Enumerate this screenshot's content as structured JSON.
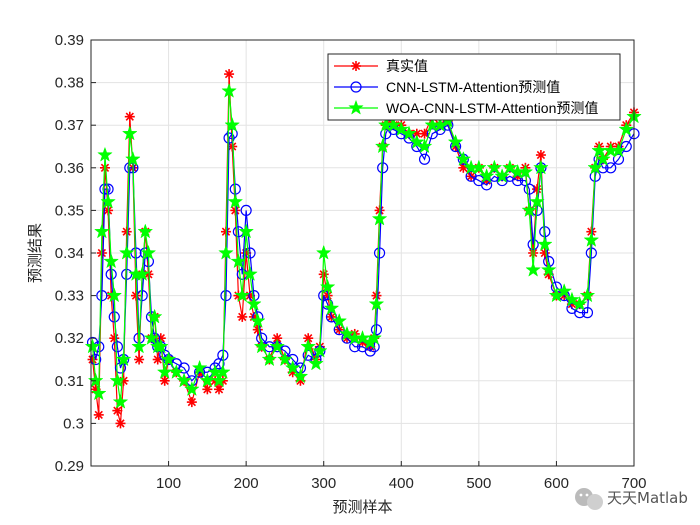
{
  "chart_data": {
    "type": "line",
    "title": "",
    "xlabel": "预测样本",
    "ylabel": "预测结果",
    "xlim": [
      0,
      700
    ],
    "ylim": [
      0.29,
      0.39
    ],
    "xticks": [
      100,
      200,
      300,
      400,
      500,
      600,
      700
    ],
    "yticks": [
      0.29,
      0.3,
      0.31,
      0.32,
      0.33,
      0.34,
      0.35,
      0.36,
      0.37,
      0.38,
      0.39
    ],
    "grid": true,
    "legend_position": "top-right",
    "series": [
      {
        "name": "真实值",
        "color": "#ff0000",
        "marker": "asterisk",
        "x": [
          2,
          6,
          10,
          14,
          18,
          22,
          26,
          30,
          34,
          38,
          42,
          46,
          50,
          54,
          58,
          62,
          66,
          70,
          74,
          78,
          82,
          86,
          90,
          95,
          100,
          110,
          120,
          130,
          140,
          150,
          160,
          165,
          170,
          174,
          178,
          182,
          186,
          190,
          195,
          200,
          205,
          210,
          215,
          220,
          230,
          240,
          250,
          260,
          270,
          280,
          290,
          295,
          300,
          305,
          310,
          320,
          330,
          340,
          350,
          360,
          365,
          368,
          372,
          376,
          380,
          385,
          390,
          400,
          410,
          420,
          430,
          440,
          450,
          460,
          470,
          480,
          490,
          500,
          510,
          520,
          530,
          540,
          550,
          560,
          565,
          570,
          575,
          580,
          585,
          590,
          600,
          610,
          620,
          630,
          640,
          645,
          650,
          655,
          660,
          670,
          680,
          690,
          700
        ],
        "y": [
          0.315,
          0.308,
          0.302,
          0.34,
          0.36,
          0.35,
          0.33,
          0.32,
          0.303,
          0.3,
          0.31,
          0.345,
          0.372,
          0.36,
          0.33,
          0.315,
          0.335,
          0.345,
          0.335,
          0.32,
          0.325,
          0.315,
          0.32,
          0.31,
          0.315,
          0.312,
          0.31,
          0.305,
          0.312,
          0.308,
          0.31,
          0.308,
          0.31,
          0.345,
          0.382,
          0.365,
          0.35,
          0.33,
          0.325,
          0.34,
          0.33,
          0.325,
          0.322,
          0.318,
          0.315,
          0.32,
          0.315,
          0.312,
          0.31,
          0.32,
          0.315,
          0.318,
          0.335,
          0.33,
          0.325,
          0.322,
          0.32,
          0.321,
          0.319,
          0.318,
          0.32,
          0.33,
          0.35,
          0.365,
          0.37,
          0.372,
          0.37,
          0.37,
          0.368,
          0.368,
          0.368,
          0.372,
          0.37,
          0.371,
          0.365,
          0.36,
          0.358,
          0.36,
          0.357,
          0.36,
          0.358,
          0.36,
          0.358,
          0.36,
          0.35,
          0.34,
          0.355,
          0.363,
          0.34,
          0.335,
          0.33,
          0.33,
          0.328,
          0.328,
          0.33,
          0.345,
          0.36,
          0.365,
          0.362,
          0.365,
          0.365,
          0.37,
          0.373
        ]
      },
      {
        "name": "CNN-LSTM-Attention预测值",
        "color": "#0000ff",
        "marker": "circle",
        "x": [
          2,
          6,
          10,
          14,
          18,
          22,
          26,
          30,
          34,
          38,
          42,
          46,
          50,
          54,
          58,
          62,
          66,
          70,
          74,
          78,
          82,
          86,
          90,
          95,
          100,
          110,
          120,
          130,
          140,
          150,
          160,
          165,
          170,
          174,
          178,
          182,
          186,
          190,
          195,
          200,
          205,
          210,
          215,
          220,
          230,
          240,
          250,
          260,
          270,
          280,
          290,
          295,
          300,
          305,
          310,
          320,
          330,
          340,
          350,
          360,
          365,
          368,
          372,
          376,
          380,
          385,
          390,
          400,
          410,
          420,
          430,
          440,
          450,
          460,
          470,
          480,
          490,
          500,
          510,
          520,
          530,
          540,
          550,
          560,
          565,
          570,
          575,
          580,
          585,
          590,
          600,
          610,
          620,
          630,
          640,
          645,
          650,
          655,
          660,
          670,
          680,
          690,
          700
        ],
        "y": [
          0.319,
          0.315,
          0.318,
          0.33,
          0.355,
          0.355,
          0.335,
          0.325,
          0.318,
          0.313,
          0.315,
          0.335,
          0.36,
          0.36,
          0.34,
          0.32,
          0.33,
          0.34,
          0.338,
          0.325,
          0.32,
          0.318,
          0.318,
          0.316,
          0.315,
          0.314,
          0.313,
          0.31,
          0.312,
          0.312,
          0.313,
          0.314,
          0.316,
          0.33,
          0.367,
          0.368,
          0.355,
          0.345,
          0.335,
          0.35,
          0.34,
          0.33,
          0.325,
          0.32,
          0.318,
          0.318,
          0.317,
          0.315,
          0.313,
          0.316,
          0.315,
          0.317,
          0.33,
          0.328,
          0.325,
          0.322,
          0.32,
          0.318,
          0.318,
          0.317,
          0.318,
          0.322,
          0.34,
          0.36,
          0.368,
          0.37,
          0.369,
          0.368,
          0.367,
          0.365,
          0.362,
          0.368,
          0.369,
          0.37,
          0.365,
          0.362,
          0.358,
          0.357,
          0.356,
          0.358,
          0.357,
          0.358,
          0.357,
          0.357,
          0.355,
          0.342,
          0.35,
          0.36,
          0.345,
          0.338,
          0.332,
          0.33,
          0.327,
          0.326,
          0.326,
          0.34,
          0.358,
          0.362,
          0.36,
          0.36,
          0.362,
          0.365,
          0.368
        ]
      },
      {
        "name": "WOA-CNN-LSTM-Attention预测值",
        "color": "#00ff00",
        "marker": "star",
        "x": [
          2,
          6,
          10,
          14,
          18,
          22,
          26,
          30,
          34,
          38,
          42,
          46,
          50,
          54,
          58,
          62,
          66,
          70,
          74,
          78,
          82,
          86,
          90,
          95,
          100,
          110,
          120,
          130,
          140,
          150,
          160,
          165,
          170,
          174,
          178,
          182,
          186,
          190,
          195,
          200,
          205,
          210,
          215,
          220,
          230,
          240,
          250,
          260,
          270,
          280,
          290,
          295,
          300,
          305,
          310,
          320,
          330,
          340,
          350,
          360,
          365,
          368,
          372,
          376,
          380,
          385,
          390,
          400,
          410,
          420,
          430,
          440,
          450,
          460,
          470,
          480,
          490,
          500,
          510,
          520,
          530,
          540,
          550,
          560,
          565,
          570,
          575,
          580,
          585,
          590,
          600,
          610,
          620,
          630,
          640,
          645,
          650,
          655,
          660,
          670,
          680,
          690,
          700
        ],
        "y": [
          0.318,
          0.31,
          0.307,
          0.345,
          0.363,
          0.352,
          0.338,
          0.33,
          0.31,
          0.305,
          0.315,
          0.34,
          0.368,
          0.362,
          0.335,
          0.318,
          0.335,
          0.345,
          0.34,
          0.32,
          0.325,
          0.318,
          0.318,
          0.312,
          0.315,
          0.312,
          0.31,
          0.308,
          0.313,
          0.31,
          0.312,
          0.31,
          0.312,
          0.34,
          0.378,
          0.37,
          0.352,
          0.338,
          0.33,
          0.345,
          0.335,
          0.328,
          0.324,
          0.318,
          0.315,
          0.318,
          0.315,
          0.313,
          0.311,
          0.318,
          0.314,
          0.317,
          0.34,
          0.332,
          0.327,
          0.324,
          0.321,
          0.32,
          0.32,
          0.319,
          0.32,
          0.328,
          0.348,
          0.365,
          0.37,
          0.372,
          0.37,
          0.369,
          0.368,
          0.366,
          0.365,
          0.37,
          0.37,
          0.371,
          0.366,
          0.362,
          0.36,
          0.36,
          0.358,
          0.36,
          0.358,
          0.36,
          0.359,
          0.359,
          0.35,
          0.336,
          0.352,
          0.36,
          0.342,
          0.336,
          0.33,
          0.331,
          0.329,
          0.328,
          0.33,
          0.343,
          0.36,
          0.364,
          0.362,
          0.364,
          0.364,
          0.369,
          0.372
        ]
      }
    ]
  },
  "watermark": {
    "text": "天天Matlab",
    "icon": "wechat-icon"
  }
}
